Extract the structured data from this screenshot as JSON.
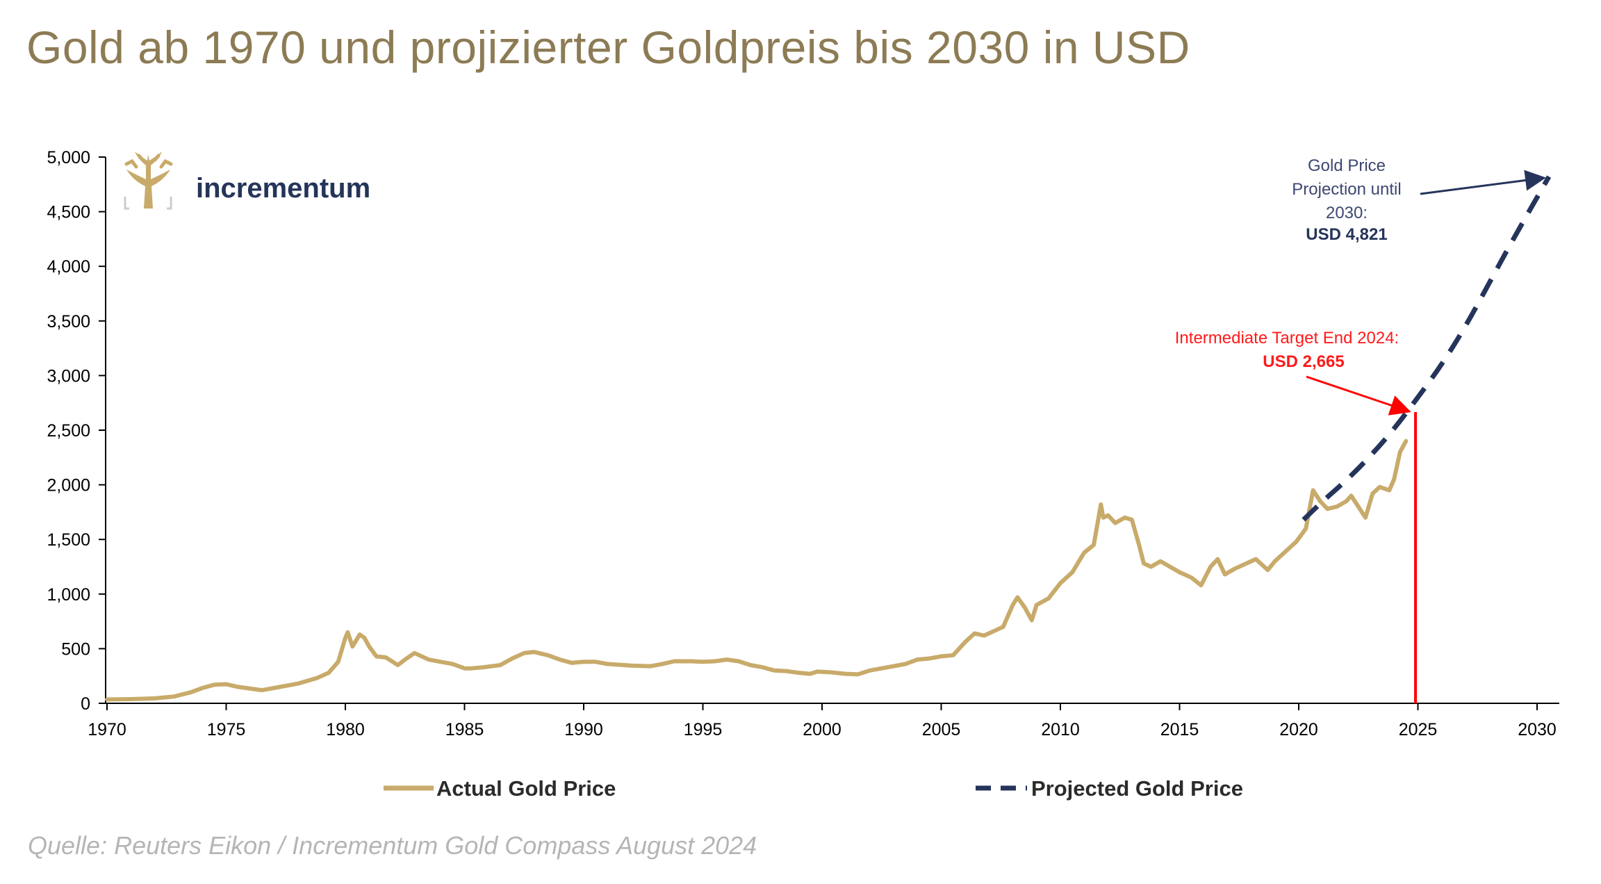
{
  "page": {
    "title": "Gold ab 1970 und projizierter Goldpreis bis 2030 in USD",
    "source": "Quelle: Reuters Eikon / Incrementum Gold Compass August 2024"
  },
  "logo": {
    "text": "incrementum",
    "icon": "tree-icon"
  },
  "colors": {
    "title": "#8c7b54",
    "actual": "#c8aa6a",
    "projected": "#25345a",
    "target": "#ff0000",
    "axis": "#000000"
  },
  "chart_data": {
    "type": "line",
    "title": "Gold ab 1970 und projizierter Goldpreis bis 2030 in USD",
    "xlabel": "",
    "ylabel": "",
    "xlim": [
      1970,
      2031
    ],
    "ylim": [
      0,
      5000
    ],
    "grid": false,
    "legend_position": "bottom",
    "x_ticks": [
      "1970",
      "1975",
      "1980",
      "1985",
      "1990",
      "1995",
      "2000",
      "2005",
      "2010",
      "2015",
      "2020",
      "2025",
      "2030"
    ],
    "y_ticks": [
      "0",
      "500",
      "1,000",
      "1,500",
      "2,000",
      "2,500",
      "3,000",
      "3,500",
      "4,000",
      "4,500",
      "5,000"
    ],
    "series": [
      {
        "name": "Actual Gold Price",
        "style": "solid",
        "x": [
          1970,
          1971,
          1972,
          1972.8,
          1973.5,
          1974,
          1974.5,
          1975,
          1975.5,
          1976.5,
          1977,
          1978,
          1978.8,
          1979.3,
          1979.7,
          1980.0,
          1980.1,
          1980.3,
          1980.6,
          1980.8,
          1981.0,
          1981.3,
          1981.7,
          1982.2,
          1982.5,
          1982.9,
          1983.1,
          1983.5,
          1984.0,
          1984.5,
          1985.0,
          1985.3,
          1985.8,
          1986.5,
          1987.0,
          1987.5,
          1987.9,
          1988.5,
          1989.0,
          1989.5,
          1990.0,
          1990.5,
          1991.0,
          1992.0,
          1992.8,
          1993.3,
          1993.8,
          1994.5,
          1995.0,
          1995.5,
          1996.0,
          1996.5,
          1997.0,
          1997.5,
          1998.0,
          1998.5,
          1999.0,
          1999.5,
          1999.8,
          2000.3,
          2001.0,
          2001.5,
          2002.0,
          2002.5,
          2003.0,
          2003.5,
          2004.0,
          2004.5,
          2005.0,
          2005.5,
          2006.0,
          2006.4,
          2006.8,
          2007.2,
          2007.6,
          2008.0,
          2008.2,
          2008.5,
          2008.8,
          2009.0,
          2009.5,
          2010.0,
          2010.5,
          2011.0,
          2011.4,
          2011.7,
          2011.8,
          2012.0,
          2012.3,
          2012.7,
          2013.0,
          2013.3,
          2013.5,
          2013.8,
          2014.2,
          2014.6,
          2015.0,
          2015.5,
          2015.9,
          2016.3,
          2016.6,
          2016.9,
          2017.3,
          2017.7,
          2018.2,
          2018.7,
          2019.0,
          2019.5,
          2019.9,
          2020.3,
          2020.6,
          2020.9,
          2021.2,
          2021.6,
          2022.0,
          2022.2,
          2022.5,
          2022.8,
          2023.1,
          2023.4,
          2023.8,
          2024.0,
          2024.25,
          2024.5
        ],
        "values": [
          35,
          38,
          45,
          62,
          100,
          140,
          170,
          175,
          150,
          120,
          140,
          180,
          230,
          280,
          380,
          600,
          650,
          520,
          630,
          600,
          520,
          430,
          420,
          350,
          400,
          460,
          440,
          400,
          380,
          360,
          320,
          320,
          330,
          350,
          410,
          460,
          470,
          440,
          400,
          370,
          380,
          380,
          360,
          345,
          340,
          360,
          385,
          385,
          380,
          385,
          400,
          385,
          350,
          330,
          300,
          295,
          280,
          270,
          290,
          285,
          270,
          265,
          300,
          320,
          340,
          360,
          400,
          410,
          430,
          440,
          560,
          640,
          620,
          660,
          700,
          900,
          970,
          880,
          760,
          900,
          960,
          1100,
          1200,
          1380,
          1450,
          1820,
          1700,
          1720,
          1650,
          1700,
          1680,
          1450,
          1280,
          1250,
          1300,
          1250,
          1200,
          1150,
          1080,
          1250,
          1320,
          1180,
          1230,
          1270,
          1320,
          1220,
          1300,
          1400,
          1480,
          1600,
          1950,
          1850,
          1780,
          1800,
          1850,
          1900,
          1800,
          1700,
          1920,
          1980,
          1950,
          2050,
          2300,
          2400
        ]
      },
      {
        "name": "Projected Gold Price",
        "style": "dashed",
        "x": [
          2020.2,
          2021,
          2022,
          2023,
          2024,
          2025,
          2026,
          2027,
          2028,
          2029,
          2030.5
        ],
        "values": [
          1680,
          1850,
          2040,
          2260,
          2510,
          2800,
          3100,
          3450,
          3850,
          4250,
          4821
        ]
      }
    ],
    "annotations": [
      {
        "lines": [
          "Gold Price",
          "Projection until",
          "2030:"
        ],
        "value_text": "USD 4,821",
        "x": 2030.5,
        "y": 4821,
        "color": "#25345a"
      },
      {
        "lines": [
          "Intermediate Target End 2024:"
        ],
        "value_text": "USD 2,665",
        "x": 2024.9,
        "y": 2665,
        "color": "#ff0000"
      }
    ]
  }
}
